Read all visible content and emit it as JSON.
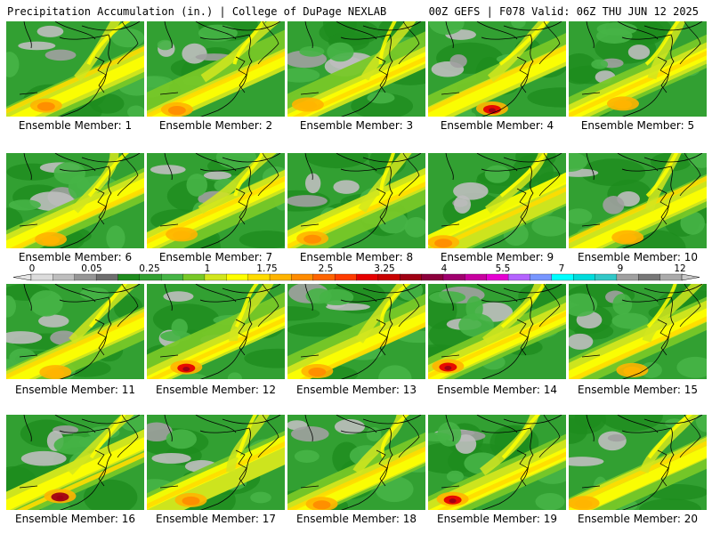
{
  "header": {
    "left_title": "Precipitation Accumulation (in.) | College of DuPage NEXLAB",
    "right_title": "00Z GEFS | F078 Valid: 06Z THU JUN 12 2025"
  },
  "panels": [
    {
      "label": "Ensemble Member: 1",
      "max_value": "2.5"
    },
    {
      "label": "Ensemble Member: 2",
      "max_value": "2.5"
    },
    {
      "label": "Ensemble Member: 3",
      "max_value": "1.75"
    },
    {
      "label": "Ensemble Member: 4",
      "max_value": "3.25"
    },
    {
      "label": "Ensemble Member: 5",
      "max_value": "1.75"
    },
    {
      "label": "Ensemble Member: 6",
      "max_value": "1.75"
    },
    {
      "label": "Ensemble Member: 7",
      "max_value": "1.75"
    },
    {
      "label": "Ensemble Member: 8",
      "max_value": "2.5"
    },
    {
      "label": "Ensemble Member: 9",
      "max_value": "2.5"
    },
    {
      "label": "Ensemble Member: 10",
      "max_value": "1.75"
    },
    {
      "label": "Ensemble Member: 11",
      "max_value": "1.75"
    },
    {
      "label": "Ensemble Member: 12",
      "max_value": "3.25"
    },
    {
      "label": "Ensemble Member: 13",
      "max_value": "2.5"
    },
    {
      "label": "Ensemble Member: 14",
      "max_value": "3.25"
    },
    {
      "label": "Ensemble Member: 15",
      "max_value": "1.75"
    },
    {
      "label": "Ensemble Member: 16",
      "max_value": "4"
    },
    {
      "label": "Ensemble Member: 17",
      "max_value": "2.5"
    },
    {
      "label": "Ensemble Member: 18",
      "max_value": "2.5"
    },
    {
      "label": "Ensemble Member: 19",
      "max_value": "3.25"
    },
    {
      "label": "Ensemble Member: 20",
      "max_value": "1.75"
    }
  ],
  "legend": {
    "labels": [
      "0",
      "0.05",
      "0.25",
      "1",
      "1.75",
      "2.5",
      "3.25",
      "4",
      "5.5",
      "7",
      "9",
      "12"
    ],
    "colors": [
      "#dcdcdc",
      "#bebebe",
      "#969696",
      "#6e6e6e",
      "#1e8c1e",
      "#32a032",
      "#46b446",
      "#78c828",
      "#d2e61e",
      "#ffff00",
      "#ffdc00",
      "#ffb400",
      "#ff8c00",
      "#ff6400",
      "#ff3c00",
      "#e60000",
      "#c80000",
      "#a00014",
      "#8c003c",
      "#a0006e",
      "#c800a0",
      "#e600d2",
      "#b464ff",
      "#7896ff",
      "#00ffff",
      "#00dcdc",
      "#32c8c8",
      "#a0a0a0",
      "#787878",
      "#aaaaaa"
    ]
  }
}
